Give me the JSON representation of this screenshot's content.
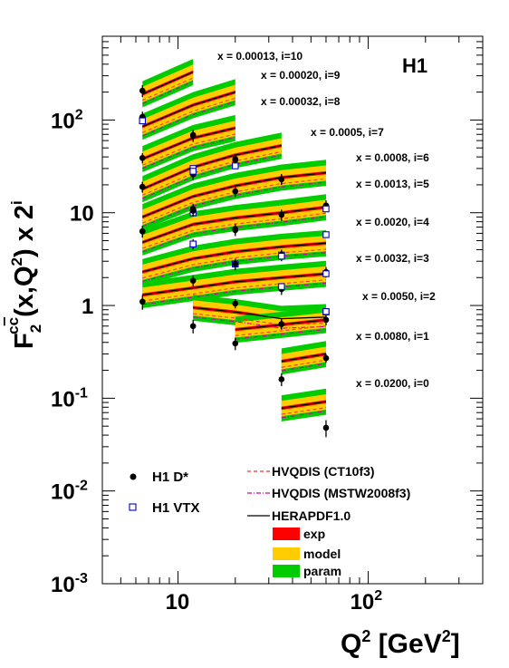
{
  "chart_data": {
    "type": "line",
    "scale": {
      "x": "log",
      "y": "log"
    },
    "xlim": [
      4,
      400
    ],
    "ylim": [
      0.001,
      800
    ],
    "xticks": [
      {
        "base": "10",
        "exp": null
      },
      {
        "base": "10",
        "exp": "2"
      }
    ],
    "yticks": [
      {
        "base": "10",
        "exp": "-3"
      },
      {
        "base": "10",
        "exp": "-2"
      },
      {
        "base": "10",
        "exp": "-1"
      },
      {
        "base": "1",
        "exp": null
      },
      {
        "base": "10",
        "exp": null
      },
      {
        "base": "10",
        "exp": "2"
      }
    ],
    "xlabel": {
      "main": "Q",
      "sup": "2",
      "unit": " [GeV",
      "unit_sup": "2",
      "close": "]"
    },
    "ylabel": {
      "f": "F",
      "sub": "2",
      "sup": "c",
      "supbar": "c",
      "args": "(x,Q",
      "args_sup": "2",
      "tail": ") x 2",
      "tail_sup": "i"
    },
    "experiment_label": "H1",
    "colors": {
      "exp": "#ff0000",
      "model": "#ffcc00",
      "param": "#00cc00",
      "herapdf": "#000000",
      "ct10": "#ff3333",
      "mstw": "#cc00aa",
      "vtx": "#0000cc"
    },
    "legend": [
      {
        "key": "h1dstar",
        "label": "H1 D*",
        "marker": "filled-circle"
      },
      {
        "key": "h1vtx",
        "label": "H1 VTX",
        "marker": "open-square"
      },
      {
        "key": "ct10",
        "label": "HVQDIS (CT10f3)",
        "style": "dashed"
      },
      {
        "key": "mstw",
        "label": "HVQDIS (MSTW2008f3)",
        "style": "dash-dot"
      },
      {
        "key": "herapdf",
        "label": "HERAPDF1.0",
        "style": "solid"
      },
      {
        "key": "exp",
        "label": "exp",
        "style": "band"
      },
      {
        "key": "model",
        "label": "model",
        "style": "band"
      },
      {
        "key": "param",
        "label": "param",
        "style": "band"
      }
    ],
    "series": [
      {
        "label": "x = 0.00013, i=10",
        "i": 10,
        "q2": [
          6.5,
          12,
          20,
          35,
          60
        ],
        "theory": [
          [
            6.5,
            190
          ],
          [
            12,
            330
          ]
        ],
        "dstar": [
          [
            6.5,
            207,
            30
          ]
        ],
        "vtx": [
          [
            6.5,
            100
          ]
        ]
      },
      {
        "label": "x = 0.00020, i=9",
        "i": 9,
        "q2": [
          6.5,
          12,
          20,
          35,
          60
        ],
        "theory": [
          [
            6.5,
            85
          ],
          [
            12,
            145
          ],
          [
            20,
            200
          ]
        ],
        "dstar": [
          [
            6.5,
            108,
            15
          ],
          [
            12,
            68,
            10
          ]
        ],
        "vtx": [
          [
            6.5,
            98
          ]
        ]
      },
      {
        "label": "x = 0.00032, i=8",
        "i": 8,
        "q2": [
          6.5,
          12,
          20,
          35,
          60
        ],
        "theory": [
          [
            6.5,
            38
          ],
          [
            12,
            64
          ],
          [
            20,
            82
          ]
        ],
        "dstar": [
          [
            6.5,
            39,
            5
          ],
          [
            12,
            69,
            9
          ],
          [
            20,
            38,
            5
          ]
        ],
        "vtx": [
          [
            12,
            30
          ]
        ]
      },
      {
        "label": "x = 0.0005, i=7",
        "i": 7,
        "q2": [
          6.5,
          12,
          20,
          35,
          60
        ],
        "theory": [
          [
            6.5,
            18
          ],
          [
            12,
            31
          ],
          [
            20,
            42
          ],
          [
            35,
            53
          ]
        ],
        "dstar": [
          [
            6.5,
            19,
            2.5
          ],
          [
            12,
            26,
            3.5
          ],
          [
            20,
            37,
            5
          ],
          [
            35,
            23,
            3
          ]
        ],
        "vtx": [
          [
            12,
            28
          ],
          [
            20,
            32
          ]
        ]
      },
      {
        "label": "x = 0.0008, i=6",
        "i": 6,
        "q2": [
          6.5,
          12,
          20,
          35,
          60
        ],
        "theory": [
          [
            6.5,
            9
          ],
          [
            12,
            15
          ],
          [
            20,
            19.5
          ],
          [
            35,
            24
          ],
          [
            60,
            27
          ]
        ],
        "dstar": [
          [
            6.5,
            19,
            2.5
          ],
          [
            12,
            11,
            1.5
          ],
          [
            20,
            17,
            2.2
          ],
          [
            35,
            23,
            3
          ],
          [
            60,
            12,
            1.6
          ]
        ],
        "vtx": [
          [
            12,
            10
          ],
          [
            60,
            11
          ]
        ]
      },
      {
        "label": "x = 0.0013, i=5",
        "i": 5,
        "q2": [
          6.5,
          12,
          20,
          35,
          60
        ],
        "theory": [
          [
            6.5,
            4.8
          ],
          [
            12,
            7.5
          ],
          [
            20,
            8.8
          ],
          [
            35,
            10
          ],
          [
            60,
            11.5
          ]
        ],
        "dstar": [
          [
            6.5,
            6.3,
            0.9
          ],
          [
            12,
            10.5,
            1.4
          ],
          [
            20,
            6.7,
            0.9
          ],
          [
            35,
            9.5,
            1.3
          ]
        ],
        "vtx": [
          [
            12,
            4.6
          ],
          [
            35,
            3.5
          ],
          [
            60,
            5.8
          ]
        ]
      },
      {
        "label": "x = 0.0020, i=4",
        "i": 4,
        "q2": [
          6.5,
          12,
          20,
          35,
          60
        ],
        "theory": [
          [
            6.5,
            2.3
          ],
          [
            12,
            3.2
          ],
          [
            20,
            3.8
          ],
          [
            35,
            4.3
          ],
          [
            60,
            4.7
          ]
        ],
        "dstar": [
          [
            6.5,
            6.3,
            0.9
          ],
          [
            12,
            4.6,
            0.6
          ],
          [
            20,
            6.5,
            0.9
          ],
          [
            35,
            3.5,
            0.5
          ]
        ],
        "vtx": [
          [
            12,
            4.6
          ],
          [
            20,
            2.8
          ],
          [
            35,
            3.4
          ]
        ]
      },
      {
        "label": "x = 0.0032, i=3",
        "i": 3,
        "q2": [
          6.5,
          12,
          20,
          35,
          60
        ],
        "theory": [
          [
            6.5,
            1.3
          ],
          [
            12,
            1.55
          ],
          [
            20,
            1.8
          ],
          [
            35,
            2.0
          ],
          [
            60,
            2.2
          ]
        ],
        "dstar": [
          [
            6.5,
            1.1,
            0.2
          ],
          [
            12,
            1.85,
            0.25
          ],
          [
            20,
            2.8,
            0.4
          ],
          [
            35,
            1.5,
            0.2
          ],
          [
            60,
            2.3,
            0.3
          ]
        ],
        "vtx": [
          [
            35,
            1.6
          ],
          [
            60,
            2.2
          ]
        ]
      },
      {
        "label": "x = 0.0050, i=2",
        "i": 2,
        "q2": [
          12,
          20,
          35,
          60
        ],
        "theory": [
          [
            12,
            0.95
          ],
          [
            20,
            0.85
          ],
          [
            35,
            0.72
          ],
          [
            60,
            0.75
          ]
        ],
        "dstar": [
          [
            12,
            0.6,
            0.1
          ],
          [
            20,
            1.05,
            0.12
          ],
          [
            35,
            0.63,
            0.08
          ],
          [
            60,
            0.7,
            0.09
          ]
        ],
        "vtx": [
          [
            60,
            0.85
          ]
        ]
      },
      {
        "label": "x = 0.0080, i=1",
        "i": 1,
        "q2": [
          20,
          35,
          60
        ],
        "theory": [
          [
            20,
            0.55
          ],
          [
            35,
            0.62
          ],
          [
            60,
            0.7
          ]
        ],
        "dstar": [
          [
            20,
            0.39,
            0.06
          ],
          [
            35,
            0.63,
            0.08
          ],
          [
            60,
            0.27,
            0.03
          ]
        ],
        "vtx": [
          [
            60,
            0.86
          ]
        ]
      },
      {
        "label": "x = 0.0200, i=0",
        "i": 0,
        "q2": [
          35,
          60
        ],
        "theory": [
          [
            35,
            0.25
          ],
          [
            60,
            0.3
          ]
        ],
        "dstar": [
          [
            35,
            0.16,
            0.025
          ],
          [
            60,
            0.048,
            0.01
          ]
        ],
        "vtx": []
      },
      {
        "label": "",
        "i": -1,
        "q2": [
          35,
          60
        ],
        "theory": [
          [
            35,
            0.078
          ],
          [
            60,
            0.092
          ]
        ],
        "dstar": [],
        "vtx": []
      }
    ]
  }
}
